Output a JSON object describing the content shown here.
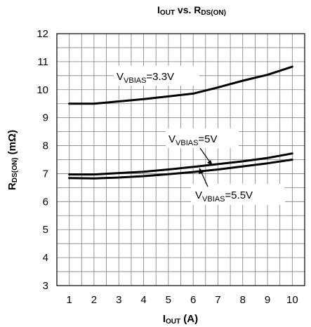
{
  "chart_data": {
    "type": "line",
    "title": {
      "main": "I",
      "sub1": "OUT",
      "mid": " vs. R",
      "sub2": "DS(ON)"
    },
    "xlabel": {
      "main": "I",
      "sub": "OUT",
      "rest": " (A)"
    },
    "ylabel": {
      "main": "R",
      "sub": "DS(ON)",
      "rest": " (mΩ)"
    },
    "xlim": [
      0.5,
      10.5
    ],
    "ylim": [
      3,
      12
    ],
    "x_ticks": [
      "1",
      "2",
      "3",
      "4",
      "5",
      "6",
      "7",
      "8",
      "9",
      "10"
    ],
    "y_ticks": [
      "3",
      "4",
      "5",
      "6",
      "7",
      "8",
      "9",
      "10",
      "11",
      "12"
    ],
    "grid": true,
    "series": [
      {
        "name": "VVBIAS=3.3V",
        "x": [
          1,
          2,
          3,
          4,
          5,
          6,
          7,
          8,
          9,
          10
        ],
        "y": [
          9.5,
          9.5,
          9.58,
          9.66,
          9.76,
          9.86,
          10.08,
          10.32,
          10.53,
          10.82
        ]
      },
      {
        "name": "VVBIAS=5V",
        "x": [
          1,
          2,
          3,
          4,
          5,
          6,
          7,
          8,
          9,
          10
        ],
        "y": [
          6.97,
          6.97,
          7.02,
          7.07,
          7.15,
          7.24,
          7.34,
          7.44,
          7.56,
          7.72
        ]
      },
      {
        "name": "VVBIAS=5.5V",
        "x": [
          1,
          2,
          3,
          4,
          5,
          6,
          7,
          8,
          9,
          10
        ],
        "y": [
          6.84,
          6.83,
          6.86,
          6.91,
          6.98,
          7.06,
          7.15,
          7.26,
          7.37,
          7.5
        ]
      }
    ],
    "annotations": [
      {
        "main": "V",
        "sub": "VBIAS",
        "rest": "=3.3V"
      },
      {
        "main": "V",
        "sub": "VBIAS",
        "rest": "=5V"
      },
      {
        "main": "V",
        "sub": "VBIAS",
        "rest": "=5.5V"
      }
    ]
  }
}
